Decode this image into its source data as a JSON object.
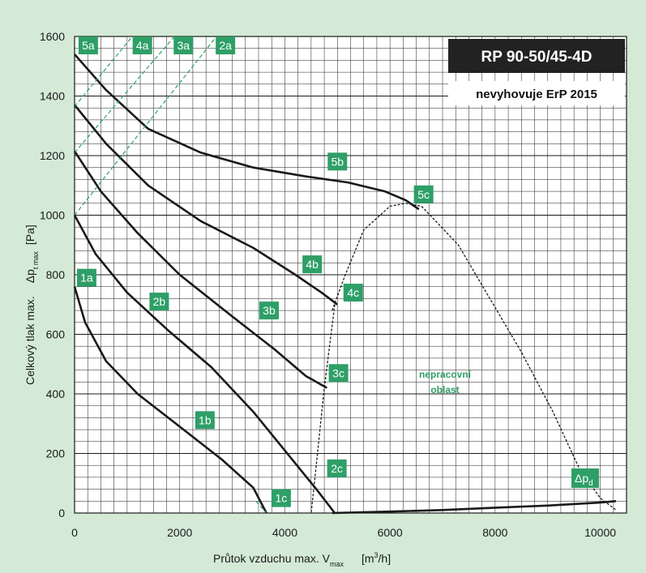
{
  "header": {
    "title": "RP 90-50/45-4D",
    "subtitle": "nevyhovuje ErP 2015"
  },
  "y_axis": {
    "title_main": "Celkový tlak max.",
    "title_sym": "Δp",
    "title_sub": "t max",
    "title_unit": "[Pa]"
  },
  "x_axis": {
    "title_main": "Průtok vzduchu max. V",
    "title_sub": "max",
    "title_unit_a": "[m",
    "title_unit_sup": "3",
    "title_unit_b": "/h]"
  },
  "zone_label": {
    "line1": "nepracovní",
    "line2": "oblast"
  },
  "dpd_label": {
    "main": "Δp",
    "sub": "d"
  },
  "colors": {
    "background": "#d4ead6",
    "plot_background": "#ffffff",
    "grid": "#1a1a1a",
    "curve": "#1a1a1a",
    "label_green": "#2e9f67",
    "title_box": "#222222"
  },
  "chart_data": {
    "type": "line",
    "title": "RP 90-50/45-4D",
    "subtitle": "nevyhovuje ErP 2015",
    "xlabel": "Průtok vzduchu max. Vmax [m3/h]",
    "ylabel": "Celkový tlak max. Δp t max [Pa]",
    "xlim": [
      0,
      10500
    ],
    "ylim": [
      0,
      1600
    ],
    "x_ticks": [
      0,
      2000,
      4000,
      6000,
      8000,
      10000
    ],
    "y_ticks": [
      0,
      200,
      400,
      600,
      800,
      1000,
      1200,
      1400,
      1600
    ],
    "grid": true,
    "series": [
      {
        "name": "1",
        "style": "solid",
        "points": [
          [
            0,
            760
          ],
          [
            200,
            640
          ],
          [
            600,
            510
          ],
          [
            1200,
            400
          ],
          [
            2000,
            290
          ],
          [
            2800,
            180
          ],
          [
            3400,
            85
          ],
          [
            3650,
            0
          ]
        ]
      },
      {
        "name": "2",
        "style": "solid",
        "points": [
          [
            0,
            1000
          ],
          [
            400,
            870
          ],
          [
            1000,
            740
          ],
          [
            1800,
            610
          ],
          [
            2600,
            490
          ],
          [
            3400,
            340
          ],
          [
            4000,
            210
          ],
          [
            4600,
            80
          ],
          [
            4950,
            0
          ]
        ]
      },
      {
        "name": "3",
        "style": "solid",
        "points": [
          [
            0,
            1215
          ],
          [
            500,
            1080
          ],
          [
            1200,
            940
          ],
          [
            2000,
            800
          ],
          [
            3000,
            660
          ],
          [
            3800,
            550
          ],
          [
            4400,
            460
          ],
          [
            4800,
            420
          ]
        ]
      },
      {
        "name": "4",
        "style": "solid",
        "points": [
          [
            0,
            1370
          ],
          [
            600,
            1240
          ],
          [
            1400,
            1100
          ],
          [
            2400,
            980
          ],
          [
            3400,
            890
          ],
          [
            4200,
            800
          ],
          [
            4700,
            740
          ],
          [
            5000,
            700
          ]
        ]
      },
      {
        "name": "5",
        "style": "solid",
        "points": [
          [
            0,
            1540
          ],
          [
            600,
            1420
          ],
          [
            1400,
            1290
          ],
          [
            2400,
            1210
          ],
          [
            3400,
            1160
          ],
          [
            4400,
            1130
          ],
          [
            5200,
            1110
          ],
          [
            5900,
            1080
          ],
          [
            6300,
            1050
          ],
          [
            6550,
            1020
          ]
        ]
      },
      {
        "name": "Δpd",
        "style": "solid",
        "points": [
          [
            4900,
            0
          ],
          [
            6000,
            5
          ],
          [
            7000,
            10
          ],
          [
            8000,
            18
          ],
          [
            9000,
            25
          ],
          [
            10000,
            35
          ],
          [
            10300,
            40
          ]
        ]
      },
      {
        "name": "1a-1c",
        "style": "dash-green",
        "points": [
          [
            3450,
            40
          ],
          [
            3650,
            0
          ]
        ]
      },
      {
        "name": "2a",
        "style": "dash-green",
        "points": [
          [
            0,
            1000
          ],
          [
            2700,
            1600
          ]
        ]
      },
      {
        "name": "3a",
        "style": "dash-green",
        "points": [
          [
            0,
            1210
          ],
          [
            1900,
            1600
          ]
        ]
      },
      {
        "name": "4a",
        "style": "dash-green",
        "points": [
          [
            0,
            1365
          ],
          [
            1100,
            1600
          ]
        ]
      },
      {
        "name": "3c-2c",
        "style": "dotted",
        "points": [
          [
            4950,
            700
          ],
          [
            4750,
            420
          ],
          [
            4550,
            80
          ],
          [
            4500,
            0
          ]
        ]
      },
      {
        "name": "4c-5c",
        "style": "dotted",
        "points": [
          [
            4900,
            680
          ],
          [
            5150,
            800
          ],
          [
            5500,
            950
          ],
          [
            6000,
            1030
          ],
          [
            6300,
            1040
          ],
          [
            6600,
            1030
          ]
        ]
      },
      {
        "name": "boundary",
        "style": "dotted",
        "points": [
          [
            6600,
            1030
          ],
          [
            7300,
            900
          ],
          [
            7900,
            720
          ],
          [
            8500,
            540
          ],
          [
            9100,
            340
          ],
          [
            9600,
            150
          ],
          [
            10000,
            50
          ],
          [
            10300,
            10
          ]
        ]
      }
    ],
    "annotations": [
      {
        "text": "1a",
        "x": 230,
        "y": 790
      },
      {
        "text": "1b",
        "x": 2480,
        "y": 312
      },
      {
        "text": "1c",
        "x": 3930,
        "y": 50
      },
      {
        "text": "2a",
        "x": 2870,
        "y": 1570
      },
      {
        "text": "2b",
        "x": 1610,
        "y": 710
      },
      {
        "text": "2c",
        "x": 4990,
        "y": 150
      },
      {
        "text": "3a",
        "x": 2070,
        "y": 1570
      },
      {
        "text": "3b",
        "x": 3700,
        "y": 680
      },
      {
        "text": "3c",
        "x": 5020,
        "y": 470
      },
      {
        "text": "4a",
        "x": 1290,
        "y": 1570
      },
      {
        "text": "4b",
        "x": 4520,
        "y": 835
      },
      {
        "text": "4c",
        "x": 5300,
        "y": 740
      },
      {
        "text": "5a",
        "x": 260,
        "y": 1570
      },
      {
        "text": "5b",
        "x": 5000,
        "y": 1180
      },
      {
        "text": "5c",
        "x": 6640,
        "y": 1070
      }
    ]
  }
}
